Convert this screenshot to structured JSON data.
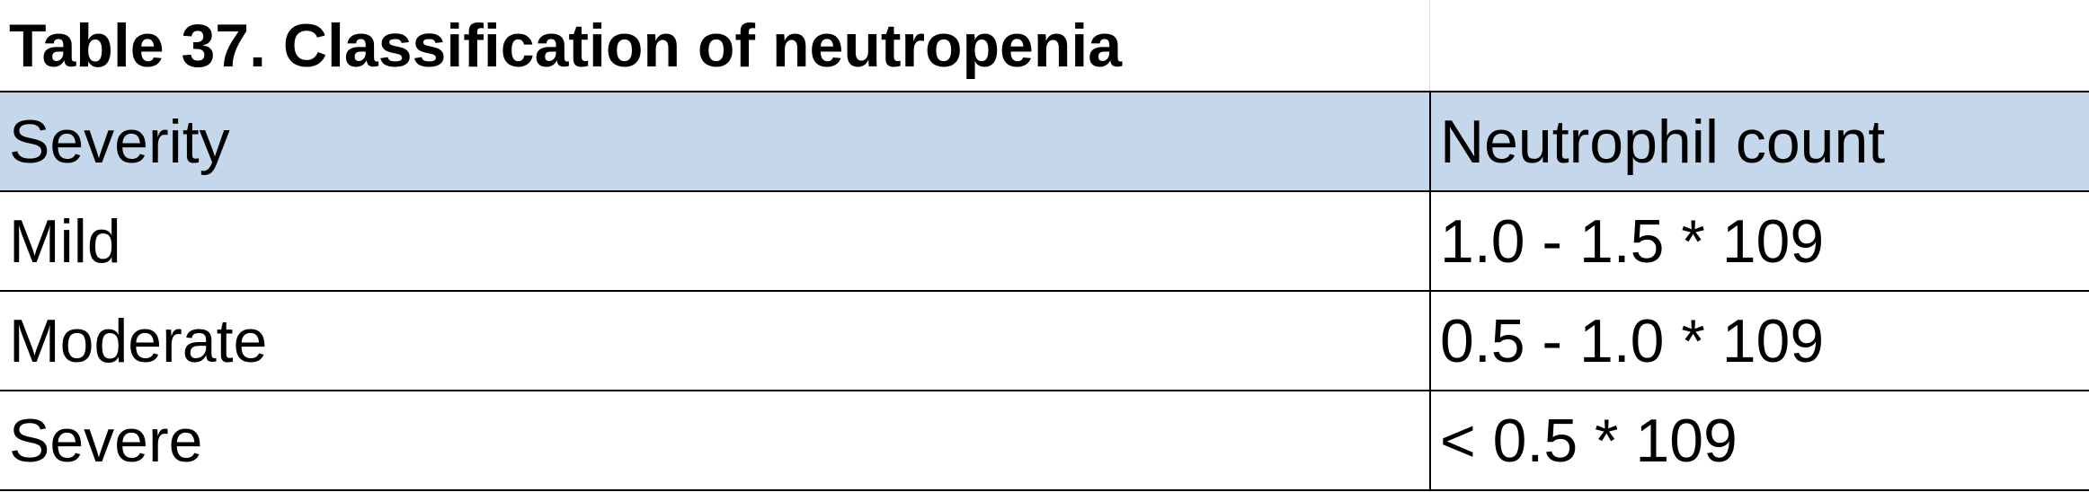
{
  "table": {
    "title": "Table 37. Classification of neutropenia",
    "header_fill": "#c5d7eb",
    "columns": [
      "Severity",
      "Neutrophil count"
    ],
    "rows": [
      [
        "Mild",
        "1.0 - 1.5 * 109"
      ],
      [
        "Moderate",
        "0.5 - 1.0 * 109"
      ],
      [
        "Severe",
        "< 0.5 * 109"
      ]
    ]
  }
}
